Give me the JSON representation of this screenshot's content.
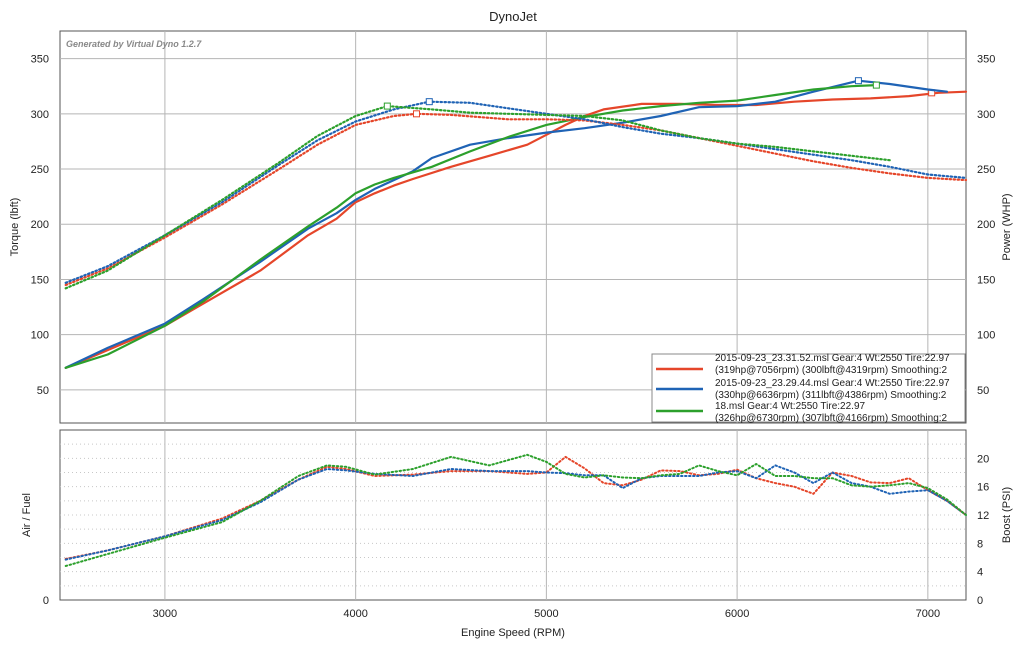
{
  "chart_data": [
    {
      "type": "line",
      "title": "DynoJet",
      "watermark": "Generated by Virtual Dyno 1.2.7",
      "ylabel": "Torque (lbft)",
      "ylabel_right": "Power (WHP)",
      "xlim": [
        2450,
        7200
      ],
      "ylim": [
        20,
        375
      ],
      "xticks": [
        3000,
        4000,
        5000,
        6000,
        7000
      ],
      "yticks": [
        50,
        100,
        150,
        200,
        250,
        300,
        350
      ],
      "grid": true,
      "legend_position": "bottom-right",
      "legend": [
        {
          "line1": "2015-09-23_23.31.52.msl Gear:4 Wt:2550 Tire:22.97",
          "line2": "(319hp@7056rpm) (300lbft@4319rpm) Smoothing:2",
          "color": "#e5462a"
        },
        {
          "line1": "2015-09-23_23.29.44.msl Gear:4 Wt:2550 Tire:22.97",
          "line2": "(330hp@6636rpm) (311lbft@4386rpm) Smoothing:2",
          "color": "#1f63b5"
        },
        {
          "line1": "18.msl Gear:4 Wt:2550 Tire:22.97",
          "line2": "(326hp@6730rpm) (307lbft@4166rpm) Smoothing:2",
          "color": "#2ca02c"
        }
      ],
      "series": [
        {
          "kind": "power",
          "style": "solid",
          "color": "#e5462a",
          "x": [
            2480,
            2700,
            3000,
            3200,
            3500,
            3750,
            3900,
            4000,
            4100,
            4200,
            4300,
            4500,
            4700,
            4900,
            5000,
            5100,
            5200,
            5300,
            5500,
            5700,
            5900,
            6100,
            6300,
            6500,
            6700,
            6900,
            7056,
            7200
          ],
          "y": [
            70,
            86,
            108,
            128,
            158,
            190,
            205,
            220,
            228,
            235,
            241,
            252,
            262,
            272,
            281,
            290,
            298,
            304,
            309,
            309,
            308,
            308,
            311,
            313,
            314,
            316,
            319,
            320
          ],
          "peak_marker": {
            "x": 7020,
            "y": 319
          }
        },
        {
          "kind": "power",
          "style": "solid",
          "color": "#1f63b5",
          "x": [
            2480,
            2700,
            3000,
            3200,
            3500,
            3750,
            3900,
            4000,
            4100,
            4200,
            4300,
            4400,
            4600,
            4800,
            5000,
            5200,
            5400,
            5600,
            5800,
            6000,
            6200,
            6400,
            6636,
            6800,
            7000,
            7100
          ],
          "y": [
            70,
            88,
            110,
            132,
            166,
            196,
            210,
            222,
            232,
            240,
            248,
            260,
            272,
            278,
            283,
            287,
            292,
            298,
            306,
            307,
            311,
            320,
            330,
            327,
            322,
            320
          ],
          "peak_marker": {
            "x": 6636,
            "y": 330
          }
        },
        {
          "kind": "power",
          "style": "solid",
          "color": "#2ca02c",
          "x": [
            2480,
            2700,
            3000,
            3200,
            3500,
            3750,
            3900,
            4000,
            4100,
            4200,
            4400,
            4600,
            4800,
            5000,
            5200,
            5400,
            5600,
            5800,
            6000,
            6200,
            6400,
            6600,
            6730
          ],
          "y": [
            70,
            82,
            108,
            130,
            168,
            198,
            215,
            228,
            236,
            242,
            252,
            266,
            279,
            290,
            297,
            303,
            307,
            310,
            312,
            317,
            322,
            325,
            326
          ],
          "peak_marker": {
            "x": 6730,
            "y": 326
          }
        },
        {
          "kind": "torque",
          "style": "dotted",
          "color": "#e5462a",
          "x": [
            2480,
            2700,
            3000,
            3300,
            3600,
            3800,
            4000,
            4200,
            4319,
            4500,
            4800,
            5000,
            5200,
            5400,
            5600,
            5800,
            6000,
            6200,
            6400,
            6600,
            6800,
            7000,
            7200
          ],
          "y": [
            145,
            160,
            188,
            218,
            250,
            272,
            290,
            298,
            300,
            299,
            295,
            295,
            294,
            290,
            285,
            278,
            271,
            264,
            257,
            251,
            246,
            242,
            240
          ],
          "peak_marker": {
            "x": 4319,
            "y": 300
          }
        },
        {
          "kind": "torque",
          "style": "dotted",
          "color": "#1f63b5",
          "x": [
            2480,
            2700,
            3000,
            3300,
            3600,
            3800,
            4000,
            4200,
            4386,
            4600,
            4800,
            5000,
            5200,
            5400,
            5600,
            5800,
            6000,
            6200,
            6400,
            6600,
            6800,
            7000,
            7200
          ],
          "y": [
            147,
            162,
            190,
            220,
            254,
            276,
            293,
            304,
            311,
            310,
            305,
            300,
            295,
            288,
            282,
            278,
            273,
            268,
            263,
            258,
            252,
            245,
            242
          ],
          "peak_marker": {
            "x": 4386,
            "y": 311
          }
        },
        {
          "kind": "torque",
          "style": "dotted",
          "color": "#2ca02c",
          "x": [
            2480,
            2700,
            3000,
            3300,
            3600,
            3800,
            4000,
            4166,
            4400,
            4600,
            4800,
            5000,
            5200,
            5400,
            5600,
            5800,
            6000,
            6200,
            6400,
            6600,
            6800
          ],
          "y": [
            142,
            158,
            190,
            222,
            256,
            280,
            298,
            307,
            304,
            301,
            300,
            299,
            298,
            294,
            285,
            278,
            273,
            270,
            266,
            262,
            258
          ],
          "peak_marker": {
            "x": 4166,
            "y": 307
          }
        }
      ]
    },
    {
      "type": "line",
      "ylabel": "Air / Fuel",
      "ylabel_right": "Boost (PSI)",
      "xlabel": "Engine Speed (RPM)",
      "xlim": [
        2450,
        7200
      ],
      "ylim": [
        0,
        24
      ],
      "yticks_left": [
        0
      ],
      "yticks_right": [
        0,
        4,
        8,
        12,
        16,
        20
      ],
      "xticks": [
        3000,
        4000,
        5000,
        6000,
        7000
      ],
      "grid": true,
      "series": [
        {
          "kind": "boost",
          "style": "dotted",
          "color": "#e5462a",
          "x": [
            2480,
            2700,
            3000,
            3300,
            3500,
            3700,
            3850,
            3950,
            4100,
            4300,
            4500,
            4700,
            4900,
            5000,
            5100,
            5200,
            5300,
            5400,
            5500,
            5600,
            5700,
            5800,
            5900,
            6000,
            6100,
            6200,
            6300,
            6400,
            6500,
            6600,
            6700,
            6800,
            6900,
            7000,
            7100,
            7200
          ],
          "y": [
            5.8,
            7,
            9,
            11.5,
            14,
            17,
            18.8,
            18.5,
            17.5,
            17.7,
            18.2,
            18.2,
            17.8,
            18,
            20.2,
            18.6,
            16.5,
            16.2,
            17,
            18.3,
            18.2,
            17.6,
            17.8,
            18.4,
            17.2,
            16.5,
            16,
            15,
            18,
            17.5,
            16.6,
            16.5,
            17.2,
            15.5,
            14,
            12
          ]
        },
        {
          "kind": "boost",
          "style": "dotted",
          "color": "#1f63b5",
          "x": [
            2480,
            2700,
            3000,
            3300,
            3500,
            3700,
            3850,
            3950,
            4100,
            4300,
            4500,
            4700,
            4900,
            5000,
            5100,
            5200,
            5300,
            5400,
            5500,
            5600,
            5700,
            5800,
            5900,
            6000,
            6100,
            6200,
            6300,
            6400,
            6500,
            6600,
            6700,
            6800,
            6900,
            7000,
            7100,
            7200
          ],
          "y": [
            5.7,
            7,
            9,
            11.3,
            13.8,
            17,
            18.5,
            18.3,
            17.8,
            17.5,
            18.5,
            18.2,
            18.2,
            18,
            17.9,
            17.6,
            17.6,
            15.8,
            17.2,
            17.5,
            17.5,
            17.5,
            18,
            18.2,
            17.2,
            19,
            18,
            16.5,
            18,
            16.5,
            16,
            15,
            15.3,
            15.5,
            14,
            12
          ]
        },
        {
          "kind": "boost",
          "style": "dotted",
          "color": "#2ca02c",
          "x": [
            2480,
            2700,
            3000,
            3300,
            3500,
            3700,
            3850,
            3950,
            4100,
            4300,
            4500,
            4700,
            4900,
            5000,
            5100,
            5200,
            5300,
            5400,
            5500,
            5600,
            5700,
            5800,
            5900,
            6000,
            6100,
            6200,
            6300,
            6400,
            6500,
            6600,
            6700,
            6800,
            6900,
            7000,
            7100,
            7200
          ],
          "y": [
            4.8,
            6.5,
            8.8,
            11,
            14,
            17.5,
            19,
            18.8,
            17.7,
            18.5,
            20.2,
            19,
            20.5,
            19.5,
            17.8,
            17.3,
            17.6,
            17.3,
            17.2,
            17.6,
            17.8,
            19,
            18.2,
            17.6,
            19.2,
            17.5,
            17.5,
            17.2,
            17.2,
            16.2,
            16,
            16.2,
            16.5,
            15.8,
            14.2,
            12
          ]
        }
      ]
    }
  ]
}
